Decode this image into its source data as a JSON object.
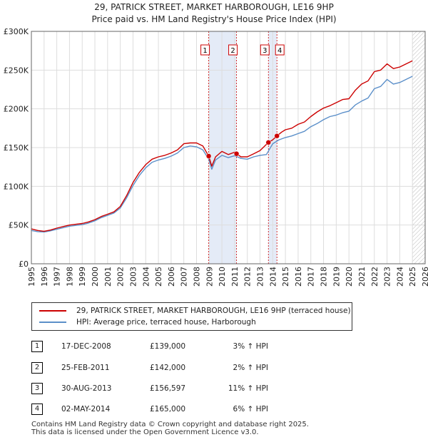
{
  "title_line1": "29, PATRICK STREET, MARKET HARBOROUGH, LE16 9HP",
  "title_line2": "Price paid vs. HM Land Registry's House Price Index (HPI)",
  "colors": {
    "property": "#cc0000",
    "hpi": "#5b8fc9",
    "shade": "#dde6f5",
    "marker": "#cc0000",
    "grid": "#dddddd"
  },
  "legend": {
    "property_label": "29, PATRICK STREET, MARKET HARBOROUGH, LE16 9HP (terraced house)",
    "hpi_label": "HPI: Average price, terraced house, Harborough"
  },
  "sales": [
    {
      "num": "1",
      "date": "17-DEC-2008",
      "price": "£139,000",
      "hpi": "3% ↑ HPI"
    },
    {
      "num": "2",
      "date": "25-FEB-2011",
      "price": "£142,000",
      "hpi": "2% ↑ HPI"
    },
    {
      "num": "3",
      "date": "30-AUG-2013",
      "price": "£156,597",
      "hpi": "11% ↑ HPI"
    },
    {
      "num": "4",
      "date": "02-MAY-2014",
      "price": "£165,000",
      "hpi": "6% ↑ HPI"
    }
  ],
  "footer_line1": "Contains HM Land Registry data © Crown copyright and database right 2025.",
  "footer_line2": "This data is licensed under the Open Government Licence v3.0.",
  "chart_data": {
    "type": "line",
    "title": "29, PATRICK STREET, MARKET HARBOROUGH, LE16 9HP — Price paid vs. HM Land Registry's House Price Index (HPI)",
    "xlabel": "",
    "ylabel": "",
    "xlim": [
      1995,
      2026
    ],
    "ylim": [
      0,
      300000
    ],
    "x_ticks": [
      "1995",
      "1996",
      "1997",
      "1998",
      "1999",
      "2000",
      "2001",
      "2002",
      "2003",
      "2004",
      "2005",
      "2006",
      "2007",
      "2008",
      "2009",
      "2010",
      "2011",
      "2012",
      "2013",
      "2014",
      "2015",
      "2016",
      "2017",
      "2018",
      "2019",
      "2020",
      "2021",
      "2022",
      "2023",
      "2024",
      "2025",
      "2026"
    ],
    "y_ticks": [
      {
        "value": 0,
        "label": "£0"
      },
      {
        "value": 50000,
        "label": "£50K"
      },
      {
        "value": 100000,
        "label": "£100K"
      },
      {
        "value": 150000,
        "label": "£150K"
      },
      {
        "value": 200000,
        "label": "£200K"
      },
      {
        "value": 250000,
        "label": "£250K"
      },
      {
        "value": 300000,
        "label": "£300K"
      }
    ],
    "shaded_spans": [
      [
        2008.96,
        2011.15
      ],
      [
        2013.66,
        2014.33
      ]
    ],
    "hatched_from": 2025.0,
    "series": [
      {
        "name": "29, PATRICK STREET, MARKET HARBOROUGH, LE16 9HP (terraced house)",
        "x": [
          1995.0,
          1995.5,
          1996.0,
          1996.5,
          1997.0,
          1997.5,
          1998.0,
          1998.5,
          1999.0,
          1999.5,
          2000.0,
          2000.5,
          2001.0,
          2001.5,
          2002.0,
          2002.5,
          2003.0,
          2003.5,
          2004.0,
          2004.5,
          2005.0,
          2005.5,
          2006.0,
          2006.5,
          2007.0,
          2007.5,
          2008.0,
          2008.5,
          2008.96,
          2009.2,
          2009.5,
          2010.0,
          2010.5,
          2011.0,
          2011.15,
          2011.5,
          2012.0,
          2012.5,
          2013.0,
          2013.66,
          2014.0,
          2014.33,
          2014.7,
          2015.0,
          2015.5,
          2016.0,
          2016.5,
          2017.0,
          2017.5,
          2018.0,
          2018.5,
          2019.0,
          2019.5,
          2020.0,
          2020.5,
          2021.0,
          2021.5,
          2022.0,
          2022.5,
          2023.0,
          2023.5,
          2024.0,
          2024.5,
          2025.0
        ],
        "values": [
          45000,
          43000,
          42000,
          43500,
          46000,
          48000,
          50000,
          51000,
          52000,
          54000,
          57000,
          61000,
          64000,
          67000,
          74000,
          88000,
          105000,
          118000,
          128000,
          135000,
          138000,
          140000,
          143000,
          147000,
          155000,
          156000,
          156000,
          152000,
          139000,
          126000,
          138000,
          145000,
          141000,
          144000,
          142000,
          138000,
          138000,
          142000,
          146000,
          156597,
          160000,
          165000,
          170000,
          173000,
          175000,
          180000,
          183000,
          190000,
          196000,
          201000,
          204000,
          208000,
          212000,
          213000,
          224000,
          232000,
          236000,
          248000,
          250000,
          258000,
          252000,
          254000,
          258000,
          262000
        ]
      },
      {
        "name": "HPI: Average price, terraced house, Harborough",
        "x": [
          1995.0,
          1995.5,
          1996.0,
          1996.5,
          1997.0,
          1997.5,
          1998.0,
          1998.5,
          1999.0,
          1999.5,
          2000.0,
          2000.5,
          2001.0,
          2001.5,
          2002.0,
          2002.5,
          2003.0,
          2003.5,
          2004.0,
          2004.5,
          2005.0,
          2005.5,
          2006.0,
          2006.5,
          2007.0,
          2007.5,
          2008.0,
          2008.5,
          2008.96,
          2009.2,
          2009.5,
          2010.0,
          2010.5,
          2011.0,
          2011.5,
          2012.0,
          2012.5,
          2013.0,
          2013.5,
          2014.0,
          2014.5,
          2015.0,
          2015.5,
          2016.0,
          2016.5,
          2017.0,
          2017.5,
          2018.0,
          2018.5,
          2019.0,
          2019.5,
          2020.0,
          2020.5,
          2021.0,
          2021.5,
          2022.0,
          2022.5,
          2023.0,
          2023.5,
          2024.0,
          2024.5,
          2025.0
        ],
        "values": [
          43000,
          41500,
          41000,
          42500,
          44500,
          46500,
          48500,
          49500,
          50500,
          52500,
          55500,
          59500,
          62500,
          65500,
          72000,
          85000,
          101000,
          114000,
          124000,
          131000,
          134000,
          136000,
          139000,
          143000,
          150000,
          152000,
          151000,
          147000,
          135000,
          122000,
          134000,
          140000,
          137000,
          139500,
          136000,
          135000,
          138000,
          140000,
          141000,
          155000,
          160000,
          163000,
          165000,
          168000,
          171000,
          177000,
          181000,
          186000,
          190000,
          192000,
          195000,
          197000,
          205000,
          210000,
          214000,
          226000,
          229000,
          238000,
          232000,
          234000,
          238000,
          242000
        ]
      }
    ],
    "sale_markers": [
      {
        "label": "1",
        "x": 2008.96,
        "value": 139000
      },
      {
        "label": "2",
        "x": 2011.15,
        "value": 142000
      },
      {
        "label": "3",
        "x": 2013.66,
        "value": 156597
      },
      {
        "label": "4",
        "x": 2014.33,
        "value": 165000
      }
    ]
  }
}
